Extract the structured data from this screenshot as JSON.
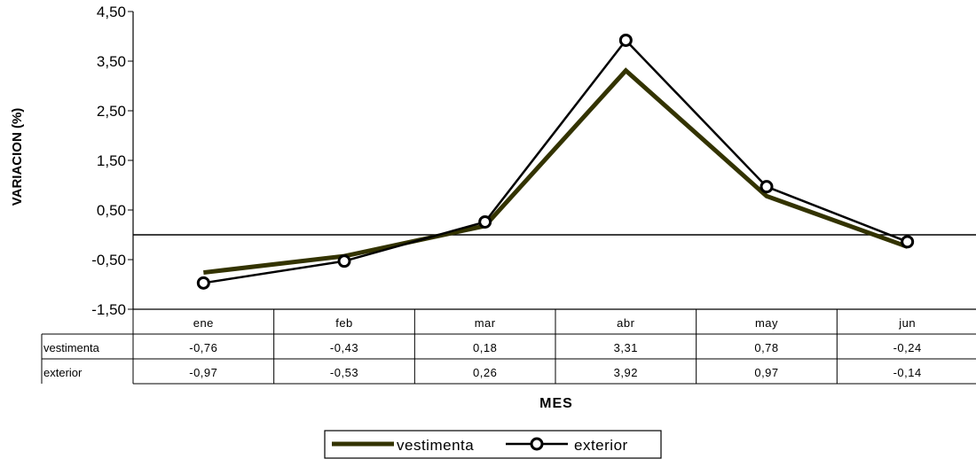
{
  "chart_data": {
    "type": "line",
    "categories": [
      "ene",
      "feb",
      "mar",
      "abr",
      "may",
      "jun"
    ],
    "series": [
      {
        "name": "vestimenta",
        "values": [
          -0.76,
          -0.43,
          0.18,
          3.31,
          0.78,
          -0.24
        ],
        "color": "#333300",
        "marker": "none"
      },
      {
        "name": "exterior",
        "values": [
          -0.97,
          -0.53,
          0.26,
          3.92,
          0.97,
          -0.14
        ],
        "color": "#000000",
        "marker": "open-circle"
      }
    ],
    "table_values": {
      "vestimenta": [
        "-0,76",
        "-0,43",
        "0,18",
        "3,31",
        "0,78",
        "-0,24"
      ],
      "exterior": [
        "-0,97",
        "-0,53",
        "0,26",
        "3,92",
        "0,97",
        "-0,14"
      ]
    },
    "yticks": [
      "4,50",
      "3,50",
      "2,50",
      "1,50",
      "0,50",
      "-0,50",
      "-1,50"
    ],
    "ytick_values": [
      4.5,
      3.5,
      2.5,
      1.5,
      0.5,
      -0.5,
      -1.5
    ],
    "ylim": [
      -1.5,
      4.5
    ],
    "ylabel": "VARIACION (%)",
    "xlabel": "MES",
    "title": "",
    "grid": false,
    "zero_line": true,
    "legend_position": "bottom-center",
    "data_table": true
  }
}
